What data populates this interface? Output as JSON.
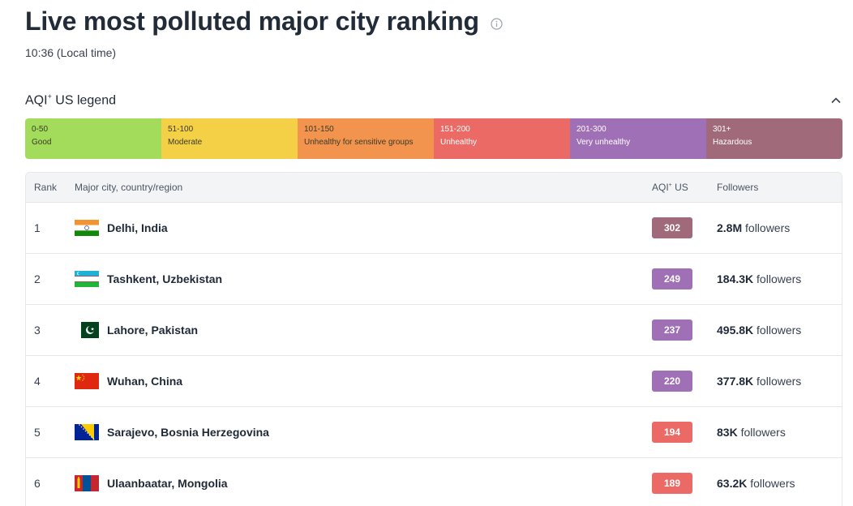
{
  "header": {
    "title": "Live most polluted major city ranking",
    "local_time": "10:36 (Local time)"
  },
  "legend": {
    "title_main": "AQI",
    "title_sup": "+",
    "title_rest": " US legend",
    "segments": [
      {
        "range": "0-50",
        "label": "Good",
        "color": "#a3dc5a"
      },
      {
        "range": "51-100",
        "label": "Moderate",
        "color": "#f4d046"
      },
      {
        "range": "101-150",
        "label": "Unhealthy for sensitive groups",
        "color": "#f2944d"
      },
      {
        "range": "151-200",
        "label": "Unhealthy",
        "color": "#ec6a66"
      },
      {
        "range": "201-300",
        "label": "Very unhealthy",
        "color": "#a070b6"
      },
      {
        "range": "301+",
        "label": "Hazardous",
        "color": "#a06a7b"
      }
    ]
  },
  "table": {
    "headers": {
      "rank": "Rank",
      "city": "Major city, country/region",
      "aqi_main": "AQI",
      "aqi_sup": "+",
      "aqi_rest": " US",
      "followers": "Followers"
    },
    "rows": [
      {
        "rank": "1",
        "city": "Delhi, India",
        "flag": "india",
        "aqi": "302",
        "aqi_color": "#a06a7b",
        "followers": "2.8M",
        "followers_word": " followers"
      },
      {
        "rank": "2",
        "city": "Tashkent, Uzbekistan",
        "flag": "uzbekistan",
        "aqi": "249",
        "aqi_color": "#a070b6",
        "followers": "184.3K",
        "followers_word": " followers"
      },
      {
        "rank": "3",
        "city": "Lahore, Pakistan",
        "flag": "pakistan",
        "aqi": "237",
        "aqi_color": "#a070b6",
        "followers": "495.8K",
        "followers_word": " followers"
      },
      {
        "rank": "4",
        "city": "Wuhan, China",
        "flag": "china",
        "aqi": "220",
        "aqi_color": "#a070b6",
        "followers": "377.8K",
        "followers_word": " followers"
      },
      {
        "rank": "5",
        "city": "Sarajevo, Bosnia Herzegovina",
        "flag": "bosnia",
        "aqi": "194",
        "aqi_color": "#ec6a66",
        "followers": "83K",
        "followers_word": " followers"
      },
      {
        "rank": "6",
        "city": "Ulaanbaatar, Mongolia",
        "flag": "mongolia",
        "aqi": "189",
        "aqi_color": "#ec6a66",
        "followers": "63.2K",
        "followers_word": " followers"
      }
    ]
  }
}
